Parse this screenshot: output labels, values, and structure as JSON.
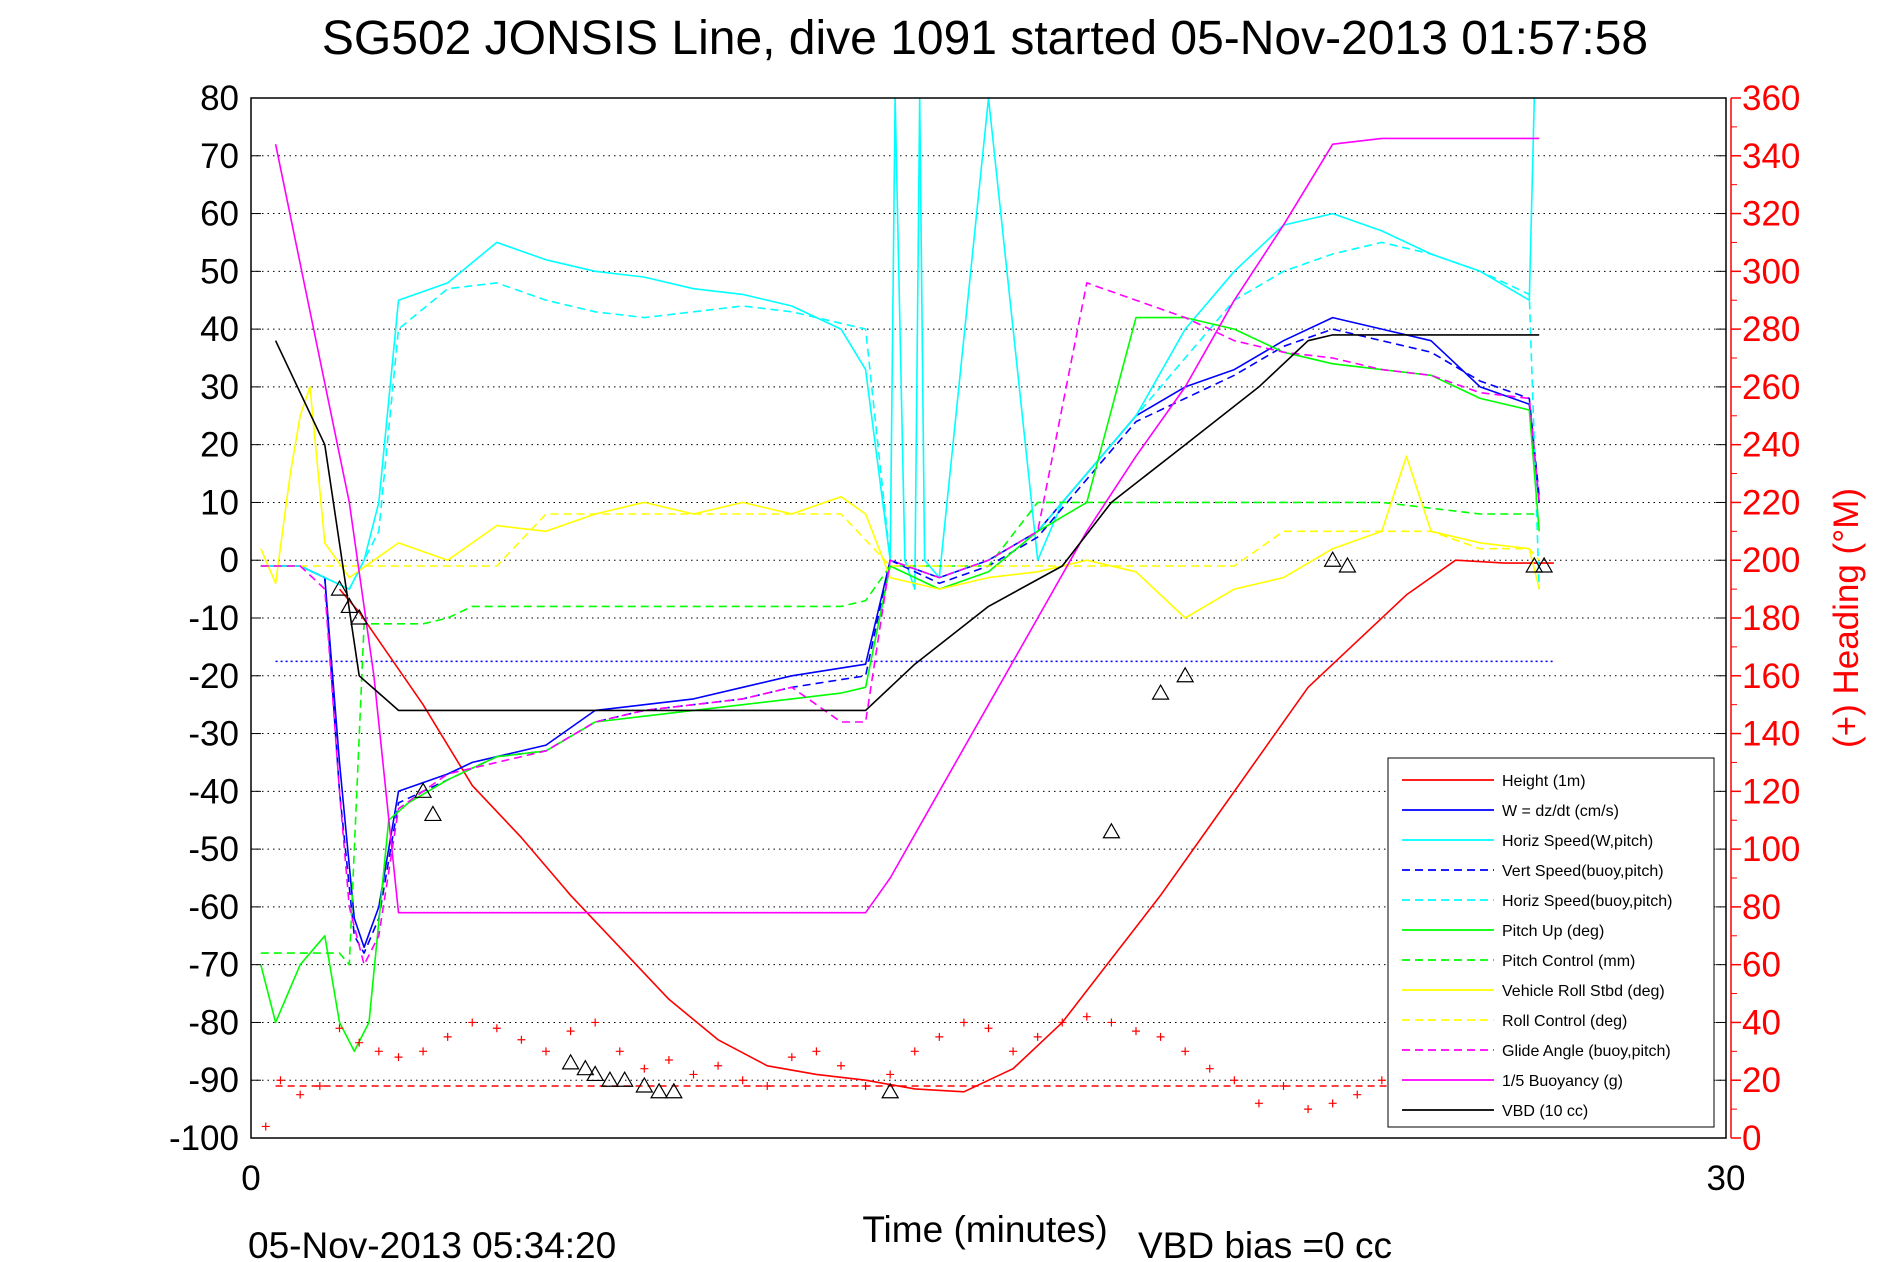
{
  "chart_data": {
    "type": "line",
    "title": "SG502 JONSIS Line, dive 1091 started 05-Nov-2013 01:57:58",
    "xlabel": "Time (minutes)",
    "ylabel": "",
    "y2label": "(+) Heading (°M)",
    "footer_left": "05-Nov-2013 05:34:20",
    "footer_right": "VBD bias =0 cc",
    "xlim": [
      0,
      30
    ],
    "ylim": [
      -100,
      80
    ],
    "y2lim": [
      0,
      360
    ],
    "xticks": [
      "0",
      "30"
    ],
    "yticks": [
      "80",
      "70",
      "60",
      "50",
      "40",
      "30",
      "20",
      "10",
      "0",
      "-10",
      "-20",
      "-30",
      "-40",
      "-50",
      "-60",
      "-70",
      "-80",
      "-90",
      "-100"
    ],
    "y2ticks": [
      "360",
      "340",
      "320",
      "300",
      "280",
      "260",
      "240",
      "220",
      "200",
      "180",
      "160",
      "140",
      "120",
      "100",
      "80",
      "60",
      "40",
      "20",
      "0"
    ],
    "grid": "horizontal-dotted",
    "legend_position": "bottom-right",
    "colors": {
      "red": "#ff0000",
      "blue": "#0000ff",
      "cyan": "#00ffff",
      "green": "#00ff00",
      "yellow": "#ffff00",
      "magenta": "#ff00ff",
      "black": "#000000"
    },
    "reference_lines": [
      {
        "y": -17.5,
        "color": "#0000ff",
        "style": "dotted"
      },
      {
        "y": -91,
        "color": "#ff0000",
        "style": "dashed"
      }
    ],
    "series": [
      {
        "name": "Height (1m)",
        "color": "#ff0000",
        "dash": "solid",
        "x": [
          1.8,
          2.2,
          3.5,
          4.5,
          5.5,
          6.5,
          7.5,
          8.5,
          9.5,
          10.5,
          11.5,
          12.5,
          13.5,
          14.5,
          15.5,
          16.5,
          17.5,
          18.5,
          19.5,
          20.5,
          21.5,
          22.5,
          23.5,
          24.5,
          25.5,
          26.5
        ],
        "y": [
          -5,
          -9,
          -25,
          -39,
          -48,
          -58,
          -67,
          -76,
          -83,
          -87.5,
          -89,
          -90,
          -91.5,
          -92,
          -88,
          -80,
          -69,
          -58,
          -46,
          -34,
          -22,
          -14,
          -6,
          0,
          -0.5,
          -0.5
        ]
      },
      {
        "name": "W = dz/dt (cm/s)",
        "color": "#0000ff",
        "dash": "solid",
        "x": [
          0.2,
          1,
          1.5,
          1.8,
          2.1,
          2.3,
          2.6,
          3,
          4,
          4.5,
          5,
          6,
          7,
          8,
          9,
          10,
          11,
          12.5,
          13,
          14,
          15,
          16,
          17,
          18,
          19,
          20,
          21,
          22,
          23,
          24,
          25,
          26,
          26.2
        ],
        "y": [
          -1,
          -1,
          -3,
          -35,
          -62,
          -67,
          -60,
          -40,
          -37,
          -35,
          -34,
          -32,
          -26,
          -25,
          -24,
          -22,
          -20,
          -18,
          0,
          -3,
          0,
          5,
          15,
          25,
          30,
          33,
          38,
          42,
          40,
          38,
          30,
          27,
          10
        ]
      },
      {
        "name": "Horiz Speed(W,pitch)",
        "color": "#00ffff",
        "dash": "solid",
        "x": [
          0.2,
          1,
          1.5,
          2,
          2.3,
          2.6,
          3,
          4,
          5,
          6,
          7,
          8,
          9,
          10,
          11,
          12,
          12.5,
          13,
          13.1,
          13.3,
          13.5,
          13.6,
          13.7,
          14,
          15,
          15.5,
          16,
          16.5,
          17,
          18,
          19,
          20,
          21,
          22,
          23,
          24,
          25,
          26,
          26.1
        ],
        "y": [
          -1,
          -1,
          -3,
          -5,
          0,
          10,
          45,
          48,
          55,
          52,
          50,
          49,
          47,
          46,
          44,
          40,
          33,
          0,
          80,
          0,
          -5,
          80,
          0,
          -3,
          80,
          40,
          0,
          10,
          15,
          25,
          40,
          50,
          58,
          60,
          57,
          53,
          50,
          45,
          80
        ]
      },
      {
        "name": "Vert Speed(buoy,pitch)",
        "color": "#0000ff",
        "dash": "dashed",
        "x": [
          0.2,
          1,
          1.5,
          1.8,
          2.1,
          2.3,
          2.6,
          3,
          4,
          4.5,
          5,
          6,
          7,
          8,
          9,
          10,
          11,
          12.5,
          13,
          14,
          15,
          16,
          17,
          18,
          19,
          20,
          21,
          22,
          23,
          24,
          25,
          26,
          26.2
        ],
        "y": [
          -1,
          -1,
          -3,
          -40,
          -65,
          -68,
          -62,
          -42,
          -38,
          -36,
          -34,
          -33,
          -28,
          -26,
          -25,
          -24,
          -22,
          -20,
          0,
          -4,
          -1,
          4,
          14,
          24,
          28,
          32,
          37,
          40,
          38,
          36,
          31,
          28,
          11
        ]
      },
      {
        "name": "Horiz Speed(buoy,pitch)",
        "color": "#00ffff",
        "dash": "dashed",
        "x": [
          0.2,
          1,
          1.5,
          2,
          2.3,
          2.6,
          3,
          4,
          5,
          6,
          7,
          8,
          9,
          10,
          11,
          12,
          12.5,
          13,
          14,
          15,
          16,
          17,
          18,
          19,
          20,
          21,
          22,
          23,
          24,
          25,
          26,
          26.2
        ],
        "y": [
          -1,
          -1,
          -3,
          -5,
          0,
          5,
          40,
          47,
          48,
          45,
          43,
          42,
          43,
          44,
          43,
          41,
          40,
          0,
          -3,
          0,
          5,
          15,
          25,
          35,
          45,
          50,
          53,
          55,
          53,
          50,
          46,
          -5
        ]
      },
      {
        "name": "Pitch Up (deg)",
        "color": "#00ff00",
        "dash": "solid",
        "x": [
          0.2,
          0.5,
          1,
          1.5,
          1.8,
          2.1,
          2.4,
          2.8,
          3.2,
          4,
          4.5,
          5,
          6,
          7,
          8,
          9,
          10,
          11,
          12,
          12.5,
          13,
          14,
          15,
          16,
          17,
          18,
          19,
          20,
          21,
          22,
          23,
          24,
          25,
          26,
          26.2
        ],
        "y": [
          -70,
          -80,
          -70,
          -65,
          -80,
          -85,
          -80,
          -45,
          -42,
          -38,
          -36,
          -34,
          -33,
          -28,
          -27,
          -26,
          -25,
          -24,
          -23,
          -22,
          -1,
          -5,
          -2,
          5,
          10,
          42,
          42,
          40,
          36,
          34,
          33,
          32,
          28,
          26,
          5
        ]
      },
      {
        "name": "Pitch Control (mm)",
        "color": "#00ff00",
        "dash": "dashed",
        "x": [
          0.2,
          1.5,
          1.8,
          2,
          2.3,
          2.8,
          3.5,
          4,
          4.5,
          6,
          8,
          10,
          12,
          12.5,
          13,
          14,
          15,
          16,
          17,
          19,
          21,
          23,
          25,
          26.2
        ],
        "y": [
          -68,
          -68,
          -68,
          -70,
          -11,
          -11,
          -11,
          -10,
          -8,
          -8,
          -8,
          -8,
          -8,
          -7,
          -1,
          -1,
          -1,
          10,
          10,
          10,
          10,
          10,
          8,
          8
        ]
      },
      {
        "name": "Vehicle Roll Stbd (deg)",
        "color": "#ffff00",
        "dash": "solid",
        "x": [
          0.2,
          0.5,
          0.8,
          1,
          1.2,
          1.5,
          2,
          3,
          4,
          4.5,
          5,
          6,
          7,
          8,
          9,
          10,
          11,
          12,
          12.5,
          13,
          14,
          15,
          16,
          17,
          18,
          19,
          20,
          21,
          22,
          23,
          23.5,
          24,
          25,
          26,
          26.2
        ],
        "y": [
          2,
          -4,
          15,
          25,
          30,
          3,
          -3,
          3,
          0,
          3,
          6,
          5,
          8,
          10,
          8,
          10,
          8,
          11,
          8,
          -3,
          -5,
          -3,
          -2,
          0,
          -2,
          -10,
          -5,
          -3,
          2,
          5,
          18,
          5,
          3,
          2,
          -5
        ]
      },
      {
        "name": "Roll Control (deg)",
        "color": "#ffff00",
        "dash": "dashed",
        "x": [
          0.2,
          1,
          2,
          3,
          4,
          5,
          6,
          7,
          8,
          9,
          10,
          11,
          12,
          13,
          14,
          15,
          16,
          17,
          18,
          19,
          20,
          21,
          22,
          23,
          24,
          25,
          26,
          26.2
        ],
        "y": [
          -1,
          -1,
          -1,
          -1,
          -1,
          -1,
          8,
          8,
          8,
          8,
          8,
          8,
          8,
          -1,
          -1,
          -1,
          -1,
          -1,
          -1,
          -1,
          -1,
          5,
          5,
          5,
          5,
          2,
          2,
          0
        ]
      },
      {
        "name": "Glide Angle (buoy,pitch)",
        "color": "#ff00ff",
        "dash": "dashed",
        "x": [
          0.2,
          1,
          1.5,
          1.8,
          2,
          2.3,
          2.6,
          3,
          4,
          5,
          6,
          7,
          8,
          9,
          10,
          11,
          12,
          12.5,
          13,
          14,
          15,
          16,
          17,
          18,
          19,
          20,
          21,
          22,
          23,
          24,
          25,
          26,
          26.2
        ],
        "y": [
          -1,
          -1,
          -5,
          -40,
          -60,
          -70,
          -65,
          -43,
          -37,
          -35,
          -33,
          -28,
          -26,
          -25,
          -24,
          -22,
          -28,
          -28,
          0,
          -3,
          0,
          5,
          48,
          45,
          42,
          38,
          36,
          35,
          33,
          32,
          29,
          28,
          10
        ]
      },
      {
        "name": "1/5 Buoyancy (g)",
        "color": "#ff00ff",
        "dash": "solid",
        "x": [
          0.5,
          2,
          2.5,
          3,
          4,
          6,
          8,
          10,
          12,
          12.5,
          13,
          14,
          15,
          16,
          17,
          18,
          19,
          20,
          21,
          22,
          23,
          24,
          25,
          26,
          26.2
        ],
        "y": [
          72,
          10,
          -20,
          -61,
          -61,
          -61,
          -61,
          -61,
          -61,
          -61,
          -55,
          -40,
          -25,
          -10,
          5,
          18,
          30,
          45,
          58,
          72,
          73,
          73,
          73,
          73,
          73
        ]
      },
      {
        "name": "VBD (10 cc)",
        "color": "#000000",
        "dash": "solid",
        "x": [
          0.5,
          1.5,
          2.2,
          3,
          4.5,
          6,
          8,
          10,
          12.5,
          13.5,
          15,
          16.5,
          17.5,
          19,
          20.5,
          21.5,
          22,
          22.5,
          23,
          24,
          25,
          26.2
        ],
        "y": [
          38,
          20,
          -20,
          -26,
          -26,
          -26,
          -26,
          -26,
          -26,
          -18,
          -8,
          -1,
          10,
          20,
          30,
          38,
          39,
          39,
          39,
          39,
          39,
          39
        ]
      }
    ],
    "heading_markers": {
      "name": "heading",
      "axis": "right",
      "color": "#ff0000",
      "x": [
        0.3,
        0.6,
        1,
        1.4,
        1.8,
        2.2,
        2.6,
        3,
        3.5,
        4,
        4.5,
        5,
        5.5,
        6,
        6.5,
        7,
        7.5,
        8,
        8.5,
        9,
        9.5,
        10,
        10.5,
        11,
        11.5,
        12,
        12.5,
        13,
        13.5,
        14,
        14.5,
        15,
        15.5,
        16,
        16.5,
        17,
        17.5,
        18,
        18.5,
        19,
        19.5,
        20,
        20.5,
        21,
        21.5,
        22,
        22.5,
        23,
        23.5,
        24,
        24.5,
        25,
        25.5,
        26,
        26.3
      ],
      "y": [
        4,
        20,
        15,
        18,
        38,
        33,
        30,
        28,
        30,
        35,
        40,
        38,
        34,
        30,
        37,
        40,
        30,
        24,
        27,
        22,
        25,
        20,
        18,
        28,
        30,
        25,
        18,
        22,
        30,
        35,
        40,
        38,
        30,
        35,
        40,
        42,
        40,
        37,
        35,
        30,
        24,
        20,
        12,
        18,
        10,
        12,
        15,
        20,
        25,
        30,
        32,
        35,
        33,
        38,
        45
      ]
    },
    "markers": {
      "name": "event-markers",
      "color": "#000000",
      "x": [
        1.8,
        2,
        2.2,
        3.5,
        3.7,
        6.5,
        6.8,
        7,
        7.3,
        7.6,
        8,
        8.3,
        8.6,
        13,
        17.5,
        18.5,
        19,
        22,
        22.3,
        26.1,
        26.3
      ],
      "y": [
        -5,
        -8,
        -10,
        -40,
        -44,
        -87,
        -88,
        -89,
        -90,
        -90,
        -91,
        -92,
        -92,
        -92,
        -47,
        -23,
        -20,
        0,
        -1,
        -1,
        -1
      ]
    }
  }
}
